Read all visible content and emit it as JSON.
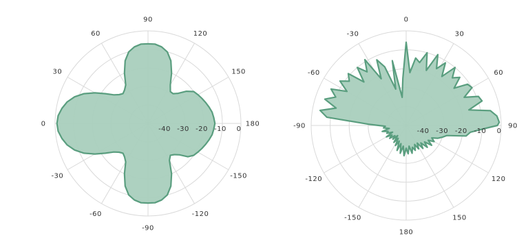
{
  "chart_data": [
    {
      "type": "polar-line",
      "title": "",
      "radial_range": [
        -50,
        0
      ],
      "radial_ticks": [
        -40,
        -30,
        -20,
        -10,
        0
      ],
      "angle_ticks": [
        {
          "deg": -90,
          "label": "-90"
        },
        {
          "deg": -60,
          "label": "-60"
        },
        {
          "deg": -30,
          "label": "-30"
        },
        {
          "deg": 0,
          "label": "0"
        },
        {
          "deg": 30,
          "label": "30"
        },
        {
          "deg": 60,
          "label": "60"
        },
        {
          "deg": 90,
          "label": "90"
        },
        {
          "deg": 120,
          "label": "120"
        },
        {
          "deg": 150,
          "label": "150"
        },
        {
          "deg": 180,
          "label": "180"
        },
        {
          "deg": -150,
          "label": "-150"
        },
        {
          "deg": -120,
          "label": "-120"
        }
      ],
      "grid": true,
      "fill_color": "#a9cfbd",
      "line_color": "#5a9e7f",
      "series": [
        {
          "angles": [
            0,
            5,
            10,
            15,
            20,
            25,
            30,
            35,
            40,
            45,
            50,
            55,
            60,
            65,
            70,
            75,
            80,
            85,
            90,
            95,
            100,
            105,
            110,
            115,
            120,
            125,
            130,
            135,
            140,
            145,
            150,
            155,
            160,
            165,
            170,
            175,
            180,
            185,
            190,
            195,
            200,
            205,
            210,
            215,
            220,
            225,
            230,
            235,
            240,
            245,
            250,
            255,
            260,
            265,
            270,
            275,
            280,
            285,
            290,
            295,
            300,
            305,
            310,
            315,
            320,
            325,
            330,
            335,
            340,
            345,
            350,
            355
          ],
          "values": [
            -1,
            -1.5,
            -3,
            -5,
            -8,
            -12,
            -17,
            -22,
            -26,
            -28,
            -29,
            -28,
            -26,
            -20,
            -14,
            -10,
            -8,
            -7,
            -7,
            -7,
            -8,
            -10,
            -14,
            -20,
            -26,
            -29,
            -29,
            -27,
            -23,
            -20,
            -19,
            -18,
            -17,
            -16,
            -15,
            -14.5,
            -14,
            -14.5,
            -15,
            -16,
            -17,
            -18,
            -19,
            -20,
            -22,
            -26,
            -28,
            -29,
            -27,
            -20,
            -14,
            -10,
            -8,
            -7,
            -7,
            -7,
            -8,
            -10,
            -14,
            -20,
            -26,
            -28,
            -29,
            -28,
            -26,
            -22,
            -17,
            -12,
            -8,
            -5,
            -3,
            -1.5
          ]
        }
      ]
    },
    {
      "type": "polar-line",
      "title": "",
      "radial_range": [
        -50,
        0
      ],
      "radial_ticks": [
        -40,
        -30,
        -20,
        -10,
        0
      ],
      "angle_ticks": [
        {
          "deg": 0,
          "label": "0"
        },
        {
          "deg": 30,
          "label": "30"
        },
        {
          "deg": 60,
          "label": "60"
        },
        {
          "deg": 90,
          "label": "90"
        },
        {
          "deg": 120,
          "label": "120"
        },
        {
          "deg": 150,
          "label": "150"
        },
        {
          "deg": 180,
          "label": "180"
        },
        {
          "deg": -150,
          "label": "-150"
        },
        {
          "deg": -120,
          "label": "-120"
        },
        {
          "deg": -90,
          "label": "-90"
        },
        {
          "deg": -60,
          "label": "-60"
        },
        {
          "deg": -30,
          "label": "-30"
        }
      ],
      "grid": true,
      "fill_color": "#a9cfbd",
      "line_color": "#5a9e7f",
      "series": [
        {
          "angles": [
            0,
            4,
            8,
            12,
            16,
            20,
            24,
            28,
            32,
            36,
            40,
            44,
            48,
            52,
            56,
            60,
            64,
            68,
            72,
            76,
            80,
            84,
            88,
            90,
            92,
            96,
            100,
            104,
            108,
            112,
            116,
            120,
            124,
            128,
            132,
            136,
            140,
            144,
            148,
            152,
            156,
            160,
            164,
            168,
            172,
            176,
            180,
            184,
            188,
            192,
            196,
            200,
            204,
            208,
            212,
            216,
            220,
            224,
            228,
            232,
            236,
            240,
            244,
            248,
            252,
            256,
            260,
            264,
            268,
            272,
            276,
            280,
            284,
            288,
            292,
            296,
            300,
            304,
            308,
            312,
            316,
            320,
            324,
            328,
            332,
            336,
            340,
            344,
            348,
            352,
            356
          ],
          "values": [
            -6,
            -22,
            -14,
            -16,
            -10,
            -19,
            -9,
            -16,
            -11,
            -18,
            -10,
            -15,
            -12,
            -18,
            -11,
            -10,
            -16,
            -9,
            -8,
            -16,
            -5,
            -2,
            -1,
            -2,
            -8,
            -16,
            -18,
            -28,
            -30,
            -32,
            -35,
            -33,
            -36,
            -33,
            -37,
            -34,
            -38,
            -35,
            -39,
            -36,
            -39,
            -36,
            -38,
            -35,
            -39,
            -35,
            -38,
            -34,
            -39,
            -35,
            -40,
            -36,
            -41,
            -38,
            -42,
            -39,
            -43,
            -40,
            -42,
            -39,
            -41,
            -38,
            -42,
            -39,
            -40,
            -37,
            -41,
            -38,
            -39,
            -30,
            -8,
            -4,
            -12,
            -5,
            -10,
            -6,
            -14,
            -8,
            -12,
            -9,
            -18,
            -10,
            -15,
            -9,
            -22,
            -12,
            -17,
            -30,
            -15,
            -35,
            -25
          ]
        }
      ]
    }
  ]
}
